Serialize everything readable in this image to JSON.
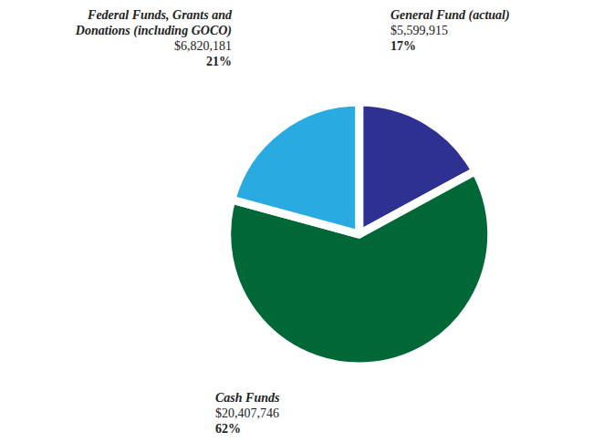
{
  "chart_data": {
    "type": "pie",
    "categories": [
      "General Fund (actual)",
      "Cash Funds",
      "Federal Funds, Grants and Donations (including GOCO)"
    ],
    "values": [
      5599915,
      20407746,
      6820181
    ],
    "value_labels": [
      "$5,599,915",
      "$20,407,746",
      "$6,820,181"
    ],
    "percents": [
      17,
      62,
      21
    ],
    "percent_labels": [
      "17%",
      "62%",
      "21%"
    ],
    "colors": [
      "#2e3192",
      "#006837",
      "#29abe2"
    ],
    "data_labels": true
  }
}
